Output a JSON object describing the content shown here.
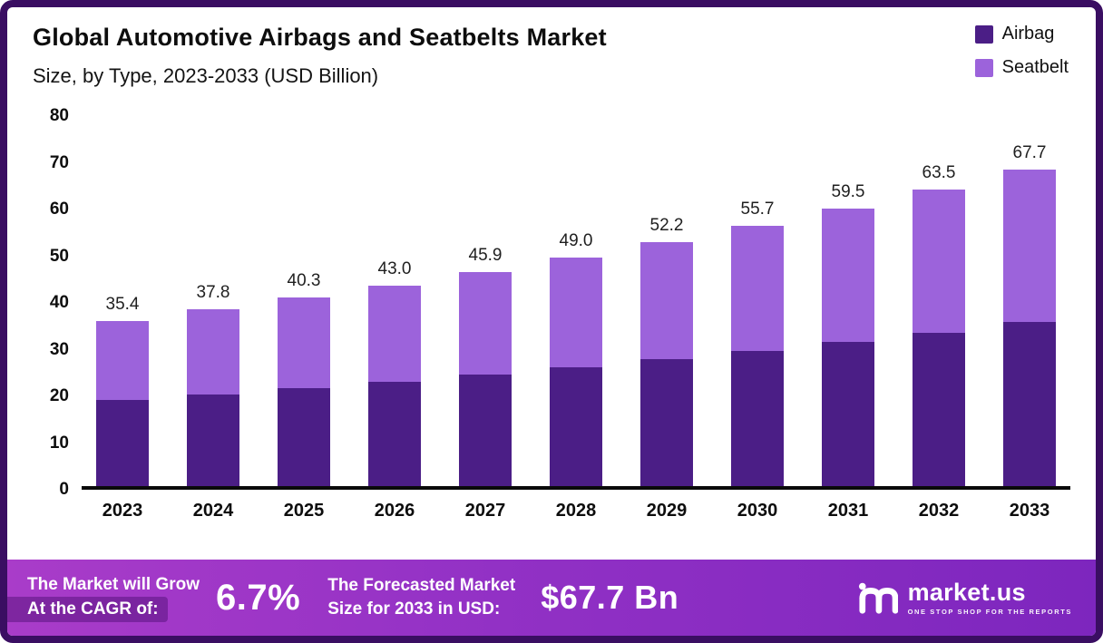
{
  "header": {
    "title": "Global Automotive Airbags and Seatbelts Market",
    "subtitle": "Size, by Type, 2023-2033 (USD Billion)"
  },
  "legend": {
    "items": [
      {
        "label": "Airbag",
        "color": "#4b1e86"
      },
      {
        "label": "Seatbelt",
        "color": "#9c63db"
      }
    ]
  },
  "chart_data": {
    "type": "bar",
    "stacked": true,
    "title": "Global Automotive Airbags and Seatbelts Market Size, by Type, 2023-2033 (USD Billion)",
    "xlabel": "",
    "ylabel": "USD Billion",
    "categories": [
      "2023",
      "2024",
      "2025",
      "2026",
      "2027",
      "2028",
      "2029",
      "2030",
      "2031",
      "2032",
      "2033"
    ],
    "series": [
      {
        "name": "Airbag",
        "color": "#4b1e86",
        "values": [
          18.4,
          19.6,
          20.9,
          22.3,
          23.8,
          25.4,
          27.1,
          28.9,
          30.9,
          32.9,
          35.2
        ]
      },
      {
        "name": "Seatbelt",
        "color": "#9c63db",
        "values": [
          17.0,
          18.2,
          19.4,
          20.7,
          22.1,
          23.6,
          25.1,
          26.8,
          28.6,
          30.6,
          32.5
        ]
      }
    ],
    "totals": [
      35.4,
      37.8,
      40.3,
      43.0,
      45.9,
      49.0,
      52.2,
      55.7,
      59.5,
      63.5,
      67.7
    ],
    "ylim": [
      0,
      80
    ],
    "yticks": [
      0,
      10,
      20,
      30,
      40,
      50,
      60,
      70,
      80
    ],
    "grid": false,
    "legend_position": "top-right"
  },
  "banner": {
    "cagr_label_line1": "The Market will Grow",
    "cagr_label_line2": "At the CAGR of:",
    "cagr_value": "6.7%",
    "forecast_label_line1": "The Forecasted Market",
    "forecast_label_line2": "Size for 2033 in USD:",
    "forecast_value": "$67.7 Bn",
    "brand_name": "market.us",
    "brand_tagline": "ONE STOP SHOP FOR THE REPORTS"
  },
  "colors": {
    "airbag": "#4b1e86",
    "seatbelt": "#9c63db",
    "frame_border": "#3a0e62",
    "banner_gradient_start": "#a93cc9",
    "banner_gradient_end": "#7d26be"
  }
}
